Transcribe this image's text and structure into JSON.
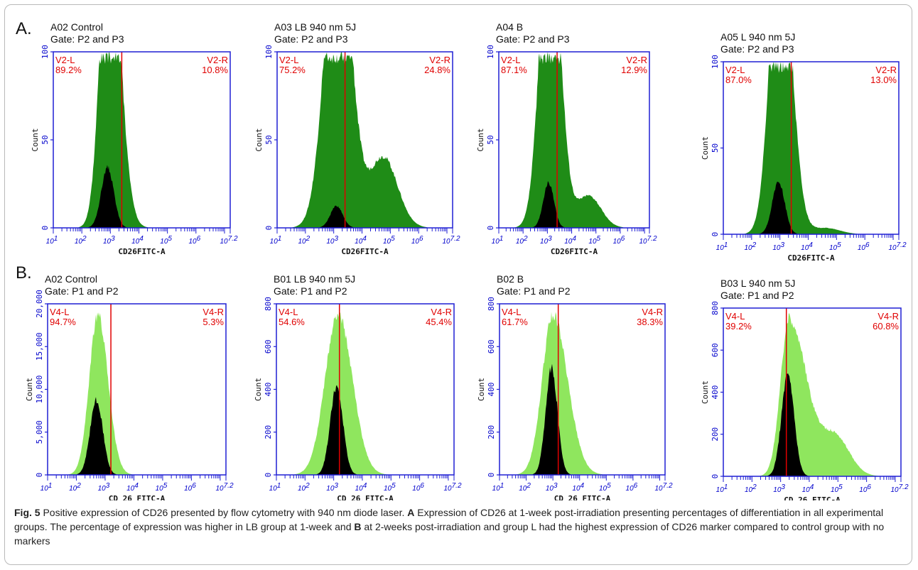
{
  "rows": [
    {
      "label": "A.",
      "panels": [
        {
          "title": "A02 Control",
          "gate": "Gate: P2 and P3",
          "left_name": "V2-L",
          "left_pct": "89.2%",
          "right_name": "V2-R",
          "right_pct": "10.8%",
          "y_ticks": [
            "0",
            "50",
            "100"
          ],
          "ylabel": "Count",
          "xlabel": "CD26FITC-A",
          "style": "dark",
          "peak": 2.95,
          "s1": 0.3,
          "s2": 0.38,
          "inner_ratio": 0.36,
          "gate_log": 3.4,
          "tail": 0.0
        },
        {
          "title": "A03 LB 940 nm 5J",
          "gate": "Gate: P2 and P3",
          "left_name": "V2-L",
          "left_pct": "75.2%",
          "right_name": "V2-R",
          "right_pct": "24.8%",
          "y_ticks": [
            "0",
            "50",
            "100"
          ],
          "ylabel": "Count",
          "xlabel": "CD26FITC-A",
          "style": "dark",
          "peak": 3.15,
          "s1": 0.45,
          "s2": 0.45,
          "inner_ratio": 0.13,
          "gate_log": 3.4,
          "tail": 0.22
        },
        {
          "title": "A04 B",
          "gate": "Gate: P2 and P3",
          "left_name": "V2-L",
          "left_pct": "87.1%",
          "right_name": "V2-R",
          "right_pct": "12.9%",
          "y_ticks": [
            "0",
            "50",
            "100"
          ],
          "ylabel": "Count",
          "xlabel": "CD26FITC-A",
          "style": "dark",
          "peak": 3.1,
          "s1": 0.4,
          "s2": 0.42,
          "inner_ratio": 0.27,
          "gate_log": 3.4,
          "tail": 0.1
        },
        {
          "title": "A05 L 940 nm 5J",
          "gate": "Gate: P2 and P3",
          "left_name": "V2-L",
          "left_pct": "87.0%",
          "right_name": "V2-R",
          "right_pct": "13.0%",
          "y_ticks": [
            "0",
            "50",
            "100"
          ],
          "ylabel": "Count",
          "xlabel": "CD26FITC-A",
          "style": "dark",
          "peak": 3.0,
          "s1": 0.35,
          "s2": 0.4,
          "inner_ratio": 0.32,
          "gate_log": 3.4,
          "tail": 0.02
        }
      ]
    },
    {
      "label": "B.",
      "panels": [
        {
          "title": "A02 Control",
          "gate": "Gate: P1 and P2",
          "left_name": "V4-L",
          "left_pct": "94.7%",
          "right_name": "V4-R",
          "right_pct": "5.3%",
          "y_ticks": [
            "0",
            "5,000",
            "10,000",
            "15,000",
            "20,000"
          ],
          "ylabel": "Count",
          "xlabel": "CD 26 FITC-A",
          "style": "light",
          "peak": 2.75,
          "s1": 0.3,
          "s2": 0.35,
          "inner_ratio": 0.46,
          "gate_log": 3.2,
          "tail": 0.0
        },
        {
          "title": "B01 LB 940 nm 5J",
          "gate": "Gate: P1 and P2",
          "left_name": "V4-L",
          "left_pct": "54.6%",
          "right_name": "V4-R",
          "right_pct": "45.4%",
          "y_ticks": [
            "0",
            "200",
            "400",
            "600",
            "800"
          ],
          "ylabel": "Count",
          "xlabel": "CD 26 FITC-A",
          "style": "light",
          "peak": 3.15,
          "s1": 0.45,
          "s2": 0.5,
          "inner_ratio": 0.55,
          "gate_log": 3.2,
          "tail": 0.0
        },
        {
          "title": "B02 B",
          "gate": "Gate: P1 and P2",
          "left_name": "V4-L",
          "left_pct": "61.7%",
          "right_name": "V4-R",
          "right_pct": "38.3%",
          "y_ticks": [
            "0",
            "200",
            "400",
            "600",
            "800"
          ],
          "ylabel": "Count",
          "xlabel": "CD 26 FITC-A",
          "style": "light",
          "peak": 3.0,
          "s1": 0.4,
          "s2": 0.55,
          "inner_ratio": 0.66,
          "gate_log": 3.2,
          "tail": 0.0
        },
        {
          "title": "B03 L 940 nm 5J",
          "gate": "Gate: P1 and P2",
          "left_name": "V4-L",
          "left_pct": "39.2%",
          "right_name": "V4-R",
          "right_pct": "60.8%",
          "y_ticks": [
            "0",
            "200",
            "400",
            "600",
            "800"
          ],
          "ylabel": "Count",
          "xlabel": "CD 26 FITC-A",
          "style": "light",
          "peak": 3.3,
          "s1": 0.3,
          "s2": 0.6,
          "inner_ratio": 0.63,
          "gate_log": 3.2,
          "tail": 0.25
        }
      ]
    }
  ],
  "x_tick_labels": [
    "10^1",
    "10^2",
    "10^3",
    "10^4",
    "10^5",
    "10^6",
    "10^7.2"
  ],
  "colors": {
    "frame": "#1f1fd4",
    "gate": "#e00000",
    "dark_fill": "#1f8c17",
    "light_fill": "#8fe65e",
    "inner_fill": "#000000",
    "label": "#0000cc"
  },
  "caption": {
    "prefix": "Fig. 5",
    "text1": "  Positive expression of CD26 presented by flow cytometry with 940 nm diode laser. ",
    "a": "A",
    "text2": " Expression of CD26 at 1-week post-irradiation presenting percentages of differentiation in all experimental groups. The percentage of expression was higher in LB group at 1-week and ",
    "b": "B",
    "text3": " at 2-weeks post-irradiation and group L had the highest expression of CD26 marker compared to control group with no markers"
  }
}
